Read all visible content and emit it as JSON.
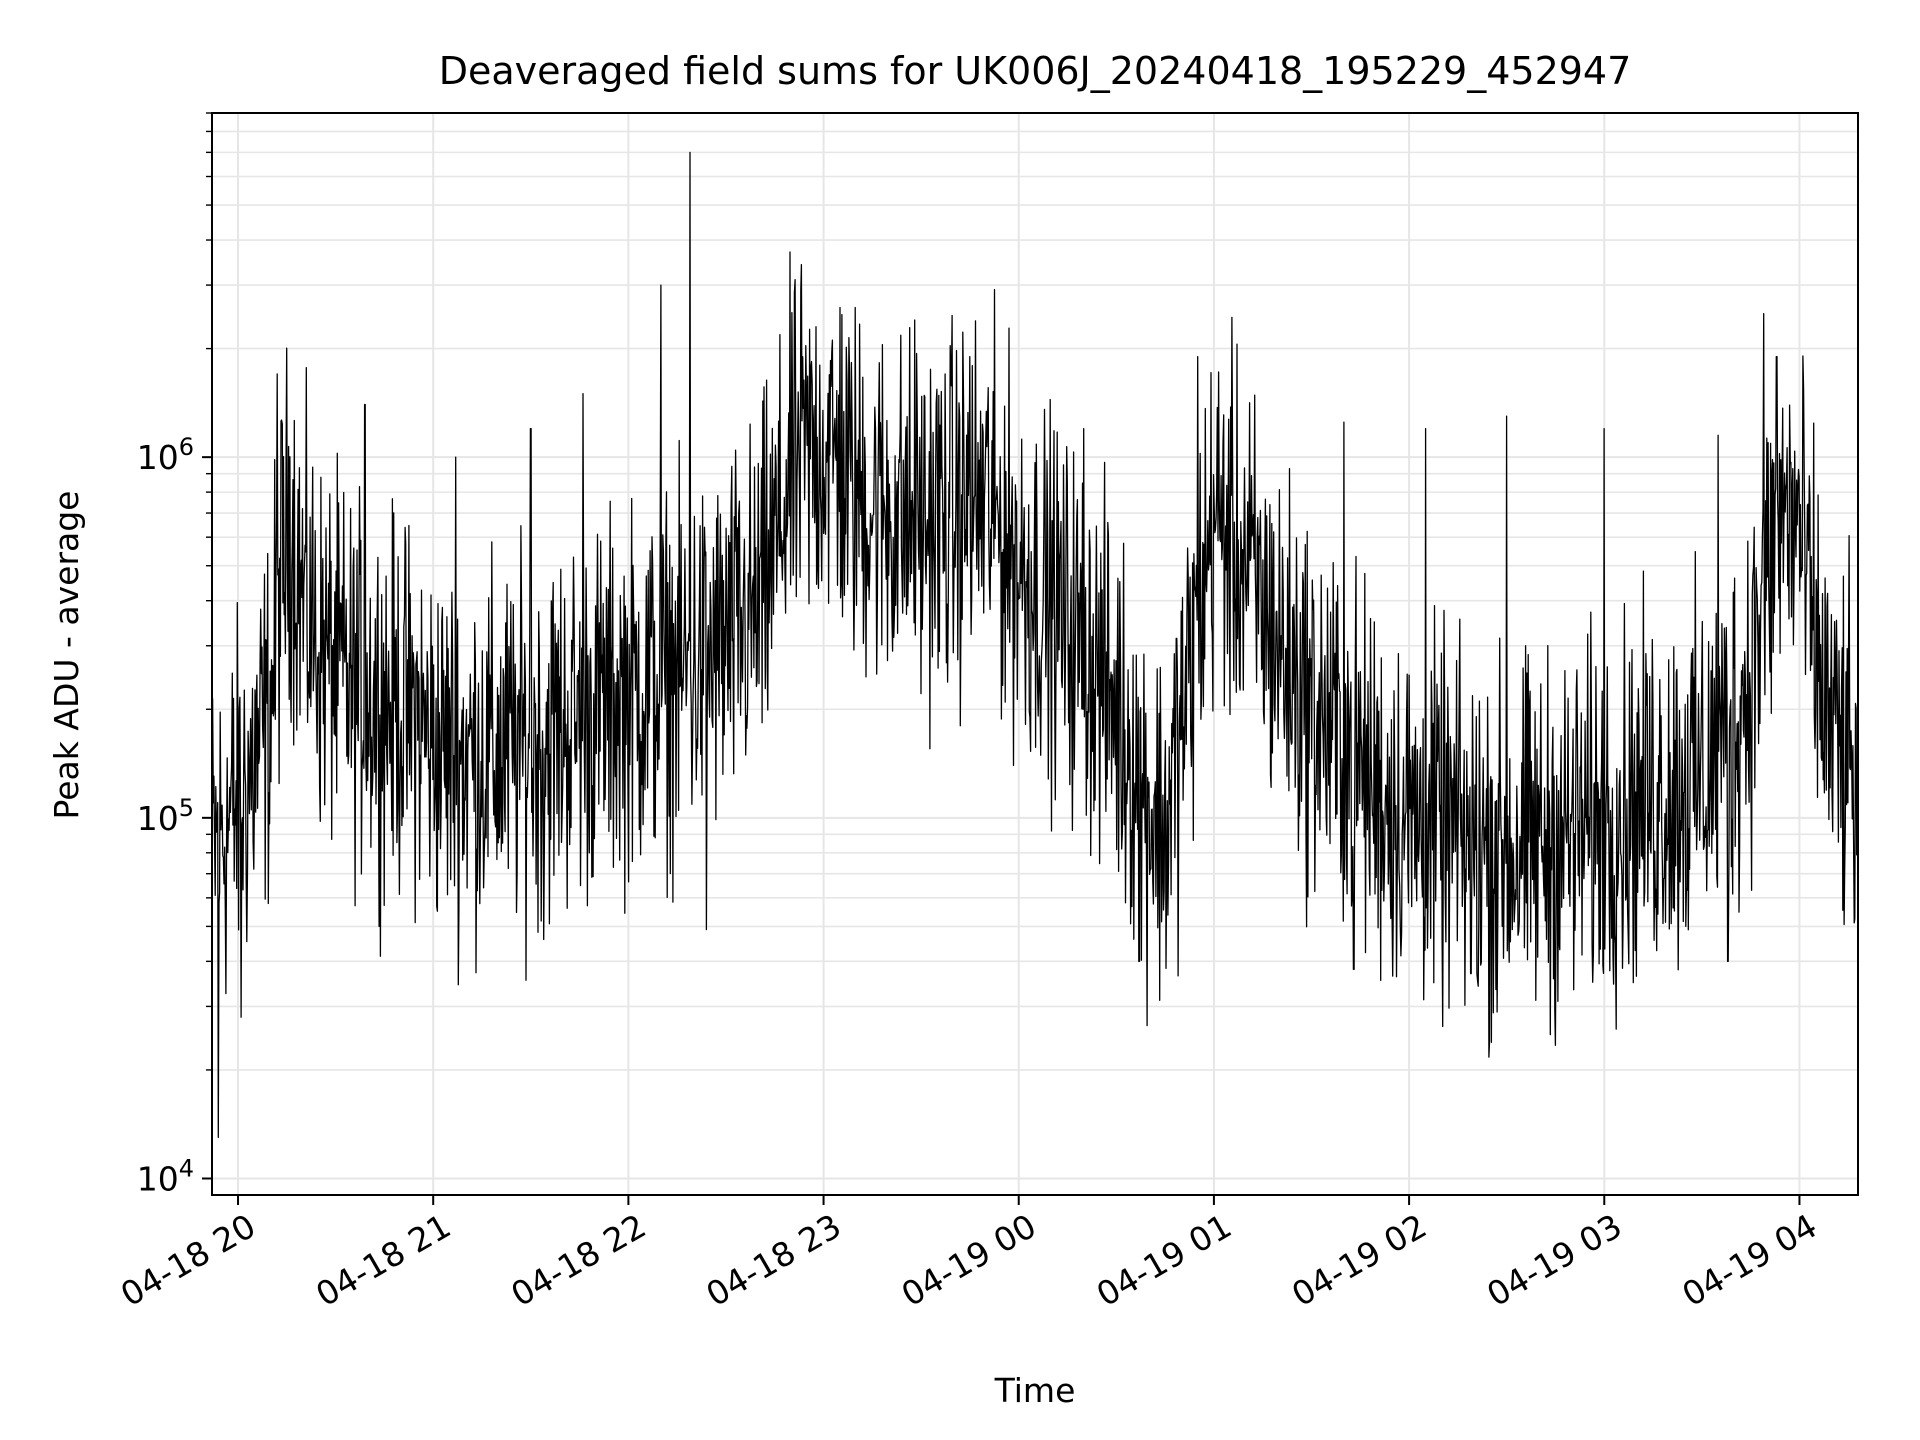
{
  "chart_data": {
    "type": "line",
    "title": "Deaveraged field sums for UK006J_20240418_195229_452947",
    "xlabel": "Time",
    "ylabel": "Peak ADU - average",
    "x_range": [
      "2024-04-18 19:52",
      "2024-04-19 04:18"
    ],
    "x_ticks": [
      "04-18 20",
      "04-18 21",
      "04-18 22",
      "04-18 23",
      "04-19 00",
      "04-19 01",
      "04-19 02",
      "04-19 03",
      "04-19 04"
    ],
    "y_scale": "log",
    "ylim": [
      9000,
      9000000
    ],
    "y_ticks": [
      {
        "base": "10",
        "exp": "4"
      },
      {
        "base": "10",
        "exp": "5"
      },
      {
        "base": "10",
        "exp": "6"
      }
    ],
    "grid": true,
    "line_color": "#000000",
    "grid_color": "#e6e6e6",
    "series": [
      {
        "time": [
          "2024-04-18 19:52",
          "2024-04-18 19:55",
          "2024-04-18 20:00",
          "2024-04-18 20:05",
          "2024-04-18 20:10",
          "2024-04-18 20:13",
          "2024-04-18 20:16",
          "2024-04-18 20:20",
          "2024-04-18 20:25",
          "2024-04-18 20:30",
          "2024-04-18 20:35",
          "2024-04-18 20:40",
          "2024-04-18 20:45",
          "2024-04-18 20:50",
          "2024-04-18 20:55",
          "2024-04-18 21:00",
          "2024-04-18 21:10",
          "2024-04-18 21:20",
          "2024-04-18 21:30",
          "2024-04-18 21:40",
          "2024-04-18 21:50",
          "2024-04-18 22:00",
          "2024-04-18 22:10",
          "2024-04-18 22:20",
          "2024-04-18 22:30",
          "2024-04-18 22:40",
          "2024-04-18 22:45",
          "2024-04-18 22:50",
          "2024-04-18 23:00",
          "2024-04-18 23:10",
          "2024-04-18 23:20",
          "2024-04-18 23:30",
          "2024-04-18 23:40",
          "2024-04-18 23:50",
          "2024-04-19 00:00",
          "2024-04-19 00:10",
          "2024-04-19 00:20",
          "2024-04-19 00:30",
          "2024-04-19 00:35",
          "2024-04-19 00:40",
          "2024-04-19 00:45",
          "2024-04-19 00:50",
          "2024-04-19 00:55",
          "2024-04-19 01:00",
          "2024-04-19 01:10",
          "2024-04-19 01:20",
          "2024-04-19 01:30",
          "2024-04-19 01:40",
          "2024-04-19 01:50",
          "2024-04-19 02:00",
          "2024-04-19 02:10",
          "2024-04-19 02:20",
          "2024-04-19 02:30",
          "2024-04-19 02:40",
          "2024-04-19 02:50",
          "2024-04-19 03:00",
          "2024-04-19 03:10",
          "2024-04-19 03:20",
          "2024-04-19 03:30",
          "2024-04-19 03:40",
          "2024-04-19 03:45",
          "2024-04-19 03:50",
          "2024-04-19 03:55",
          "2024-04-19 04:00",
          "2024-04-19 04:05",
          "2024-04-19 04:10",
          "2024-04-19 04:15",
          "2024-04-19 04:18"
        ],
        "level": [
          80000,
          90000,
          110000,
          140000,
          200000,
          450000,
          700000,
          400000,
          300000,
          260000,
          230000,
          220000,
          210000,
          200000,
          190000,
          160000,
          150000,
          150000,
          160000,
          180000,
          200000,
          220000,
          240000,
          260000,
          300000,
          380000,
          550000,
          900000,
          1100000,
          800000,
          700000,
          650000,
          700000,
          750000,
          500000,
          400000,
          300000,
          200000,
          150000,
          110000,
          90000,
          180000,
          350000,
          700000,
          500000,
          300000,
          200000,
          160000,
          120000,
          100000,
          95000,
          85000,
          80000,
          85000,
          90000,
          100000,
          110000,
          120000,
          130000,
          180000,
          250000,
          450000,
          700000,
          650000,
          280000,
          170000,
          140000,
          100000
        ]
      }
    ],
    "spikes": [
      {
        "time": "2024-04-18 19:54",
        "value": 13000
      },
      {
        "time": "2024-04-18 20:01",
        "value": 28000
      },
      {
        "time": "2024-04-18 20:12",
        "value": 1700000
      },
      {
        "time": "2024-04-18 20:39",
        "value": 1400000
      },
      {
        "time": "2024-04-18 21:07",
        "value": 1000000
      },
      {
        "time": "2024-04-18 21:30",
        "value": 1200000
      },
      {
        "time": "2024-04-18 21:46",
        "value": 1500000
      },
      {
        "time": "2024-04-18 22:10",
        "value": 3000000
      },
      {
        "time": "2024-04-18 22:19",
        "value": 7000000
      },
      {
        "time": "2024-04-18 22:53",
        "value": 2900000
      },
      {
        "time": "2024-04-18 23:05",
        "value": 2600000
      },
      {
        "time": "2024-04-18 23:28",
        "value": 2400000
      },
      {
        "time": "2024-04-18 23:45",
        "value": 1900000
      },
      {
        "time": "2024-04-19 00:20",
        "value": 1200000
      },
      {
        "time": "2024-04-19 00:55",
        "value": 1900000
      },
      {
        "time": "2024-04-19 01:40",
        "value": 1250000
      },
      {
        "time": "2024-04-19 02:05",
        "value": 1200000
      },
      {
        "time": "2024-04-19 02:30",
        "value": 1300000
      },
      {
        "time": "2024-04-19 03:00",
        "value": 1200000
      },
      {
        "time": "2024-04-19 03:35",
        "value": 1150000
      },
      {
        "time": "2024-04-19 03:49",
        "value": 2500000
      },
      {
        "time": "2024-04-19 03:53",
        "value": 1900000
      },
      {
        "time": "2024-04-19 01:43",
        "value": 38000
      },
      {
        "time": "2024-04-19 02:19",
        "value": 37000
      },
      {
        "time": "2024-04-19 03:38",
        "value": 40000
      },
      {
        "time": "2024-04-19 00:37",
        "value": 40000
      },
      {
        "time": "2024-04-18 21:34",
        "value": 46000
      },
      {
        "time": "2024-04-18 22:24",
        "value": 49000
      }
    ]
  }
}
